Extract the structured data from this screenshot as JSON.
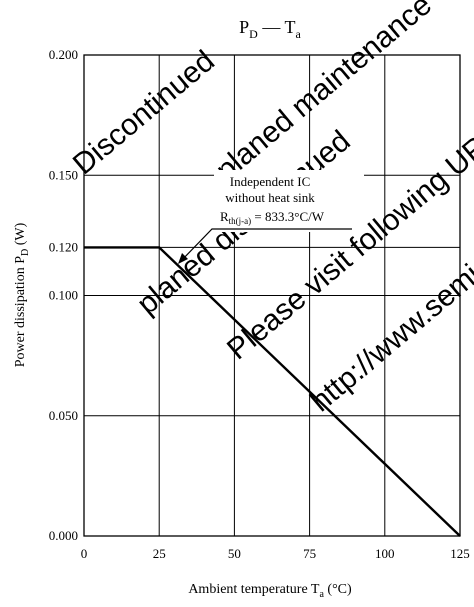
{
  "watermark": {
    "lines": [
      "Discontinued",
      "planed maintenance",
      "planed discontinued",
      "Please visit following URL",
      "http://www.semicon"
    ],
    "color": "#f0c8c8"
  },
  "chart_data": {
    "type": "line",
    "title": {
      "main": "P",
      "main_sub": "D",
      "sep": " — ",
      "rhs": "T",
      "rhs_sub": "a"
    },
    "ylabel": {
      "main": "Power dissipation  P",
      "sub": "D",
      "tail": "  (W)"
    },
    "xlabel": {
      "main": "Ambient temperature  T",
      "sub": "a",
      "tail": "  (°C)"
    },
    "xlim": [
      0,
      125
    ],
    "ylim": [
      0,
      0.2
    ],
    "xticks": [
      0,
      25,
      50,
      75,
      100,
      125
    ],
    "xtick_labels": [
      "0",
      "25",
      "50",
      "75",
      "100",
      "125"
    ],
    "yticks": [
      0,
      0.05,
      0.1,
      0.12,
      0.15,
      0.2
    ],
    "ytick_labels": [
      "0.000",
      "0.050",
      "0.100",
      "0.120",
      "0.150",
      "0.200"
    ],
    "grid": true,
    "series": [
      {
        "x": [
          0,
          25,
          125
        ],
        "y": [
          0.12,
          0.12,
          0
        ]
      }
    ],
    "annotation": {
      "line1": "Independent IC",
      "line2": "without heat sink",
      "r_main": "R",
      "r_sub": "th(j-a)",
      "r_tail": " = 833.3°C/W"
    }
  }
}
